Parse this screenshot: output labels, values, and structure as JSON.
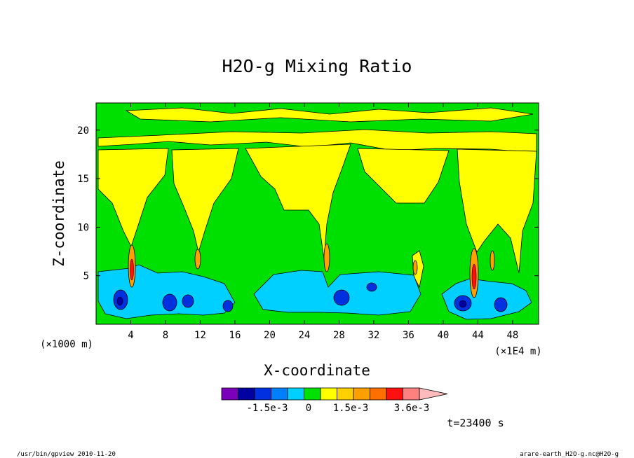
{
  "chart_data": {
    "type": "heatmap",
    "title": "H2O-g Mixing Ratio",
    "xlabel": "X-coordinate",
    "ylabel": "Z-coordinate",
    "x_unit": "(×1E4 m)",
    "y_unit": "(×1000 m)",
    "xlim": [
      0,
      51
    ],
    "ylim": [
      0,
      22.8
    ],
    "xticks": [
      "4",
      "8",
      "12",
      "16",
      "20",
      "24",
      "28",
      "32",
      "36",
      "40",
      "44",
      "48"
    ],
    "yticks": [
      "5",
      "10",
      "15",
      "20"
    ],
    "colorbar": {
      "colors": [
        "#7a00bb",
        "#0000a0",
        "#0030e0",
        "#0080ff",
        "#00d0ff",
        "#00e000",
        "#ffff00",
        "#ffd000",
        "#ffa000",
        "#ff7000",
        "#ff1010",
        "#ff8080",
        "#ffbbbb"
      ],
      "labels": [
        "-1.5e-3",
        "0",
        "1.5e-3",
        "3.6e-3"
      ]
    },
    "time_label": "t=23400 s"
  },
  "footer": {
    "left": "/usr/bin/gpview  2010-11-20",
    "right": "arare-earth_H2O-g.nc@H2O-g"
  }
}
